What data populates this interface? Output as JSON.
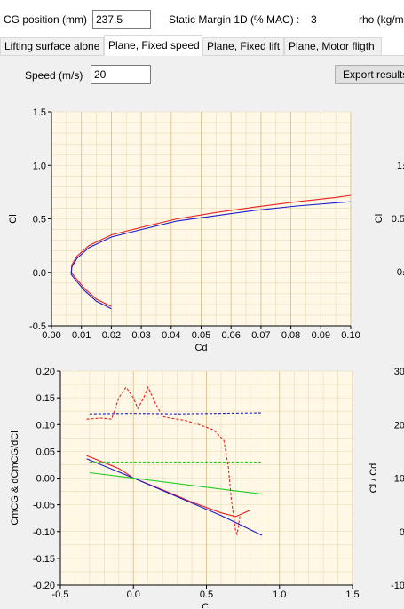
{
  "top_bar": {
    "cg_label": "CG position (mm)",
    "cg_value": "237.5",
    "static_margin_label": "Static Margin 1D (% MAC) :",
    "static_margin_value": "3",
    "rho_label": "rho (kg/m"
  },
  "tabs": [
    {
      "label": "Lifting surface alone",
      "active": false
    },
    {
      "label": "Plane, Fixed speed",
      "active": true
    },
    {
      "label": "Plane, Fixed lift",
      "active": false
    },
    {
      "label": "Plane, Motor fligth",
      "active": false
    }
  ],
  "speed": {
    "label": "Speed (m/s)",
    "value": "20"
  },
  "export_button": "Export results",
  "colors": {
    "red": "#e8201f",
    "blue": "#1c1ccc",
    "green": "#22cc22",
    "grid": "#e8d9b4",
    "plot_bg": "#fff8e6"
  },
  "chart_data": [
    {
      "type": "line",
      "title": "",
      "xlabel": "Cd",
      "ylabel": "Cl",
      "xlim": [
        0.0,
        0.1
      ],
      "ylim": [
        -0.5,
        1.5
      ],
      "x_ticks": [
        "0.00",
        "0.01",
        "0.02",
        "0.03",
        "0.04",
        "0.05",
        "0.06",
        "0.07",
        "0.08",
        "0.09",
        "0.10"
      ],
      "y_ticks": [
        "-0.5",
        "0.0",
        "0.5",
        "1.0",
        "1.5"
      ],
      "series": [
        {
          "color": "red",
          "style": "solid",
          "x": [
            0.02,
            0.015,
            0.011,
            0.008,
            0.0066,
            0.0068,
            0.0085,
            0.0125,
            0.02,
            0.03,
            0.042,
            0.055,
            0.068,
            0.082,
            0.095,
            0.1
          ],
          "y": [
            -0.32,
            -0.25,
            -0.15,
            -0.05,
            0.0,
            0.07,
            0.15,
            0.25,
            0.35,
            0.42,
            0.5,
            0.56,
            0.61,
            0.66,
            0.7,
            0.72
          ]
        },
        {
          "color": "blue",
          "style": "solid",
          "x": [
            0.02,
            0.015,
            0.011,
            0.008,
            0.0066,
            0.0068,
            0.0085,
            0.0125,
            0.02,
            0.03,
            0.042,
            0.055,
            0.068,
            0.082,
            0.095,
            0.1
          ],
          "y": [
            -0.34,
            -0.27,
            -0.17,
            -0.07,
            -0.02,
            0.05,
            0.13,
            0.23,
            0.33,
            0.4,
            0.48,
            0.53,
            0.58,
            0.62,
            0.65,
            0.66
          ]
        }
      ]
    },
    {
      "type": "line",
      "title": "",
      "xlabel": "Cl",
      "ylabel": "CmCG & dCmCG/dCl",
      "xlim": [
        -0.5,
        1.5
      ],
      "ylim": [
        -0.2,
        0.2
      ],
      "x_ticks": [
        "-0.5",
        "0.0",
        "0.5",
        "1.0",
        "1.5"
      ],
      "y_ticks": [
        "-0.20",
        "-0.15",
        "-0.10",
        "-0.05",
        "0.00",
        "0.05",
        "0.10",
        "0.15",
        "0.20"
      ],
      "series": [
        {
          "color": "red",
          "style": "solid",
          "x": [
            -0.32,
            -0.1,
            0.0,
            0.2,
            0.4,
            0.6,
            0.7,
            0.8
          ],
          "y": [
            0.042,
            0.018,
            0.0,
            -0.022,
            -0.045,
            -0.065,
            -0.072,
            -0.06
          ]
        },
        {
          "color": "blue",
          "style": "solid",
          "x": [
            -0.32,
            0.0,
            0.3,
            0.6,
            0.88
          ],
          "y": [
            0.036,
            0.0,
            -0.035,
            -0.07,
            -0.107
          ]
        },
        {
          "color": "green",
          "style": "solid",
          "x": [
            -0.3,
            0.88
          ],
          "y": [
            0.01,
            -0.03
          ]
        },
        {
          "color": "green",
          "style": "dashed",
          "x": [
            -0.3,
            0.88
          ],
          "y": [
            0.03,
            0.03
          ]
        },
        {
          "color": "blue",
          "style": "dashed",
          "x": [
            -0.3,
            0.0,
            0.3,
            0.6,
            0.88
          ],
          "y": [
            0.12,
            0.121,
            0.12,
            0.121,
            0.122
          ]
        },
        {
          "color": "red",
          "style": "dashed",
          "x": [
            -0.32,
            -0.22,
            -0.15,
            -0.1,
            -0.05,
            0.0,
            0.03,
            0.07,
            0.1,
            0.15,
            0.2,
            0.25,
            0.35,
            0.45,
            0.55,
            0.62,
            0.65,
            0.67,
            0.69,
            0.7,
            0.71,
            0.73
          ],
          "y": [
            0.11,
            0.112,
            0.11,
            0.15,
            0.17,
            0.15,
            0.13,
            0.15,
            0.17,
            0.14,
            0.115,
            0.112,
            0.108,
            0.1,
            0.09,
            0.07,
            0.02,
            -0.04,
            -0.08,
            -0.1,
            -0.105,
            -0.07
          ]
        }
      ]
    },
    {
      "type": "line",
      "title": "",
      "xlabel": "",
      "ylabel": "Cl",
      "y_ticks": [
        "1.",
        "0.5",
        "0."
      ],
      "series": []
    },
    {
      "type": "line",
      "title": "",
      "xlabel": "",
      "ylabel": "Cl / Cd",
      "y_ticks": [
        "30",
        "20",
        "10",
        "0",
        "-10"
      ],
      "series": []
    }
  ]
}
